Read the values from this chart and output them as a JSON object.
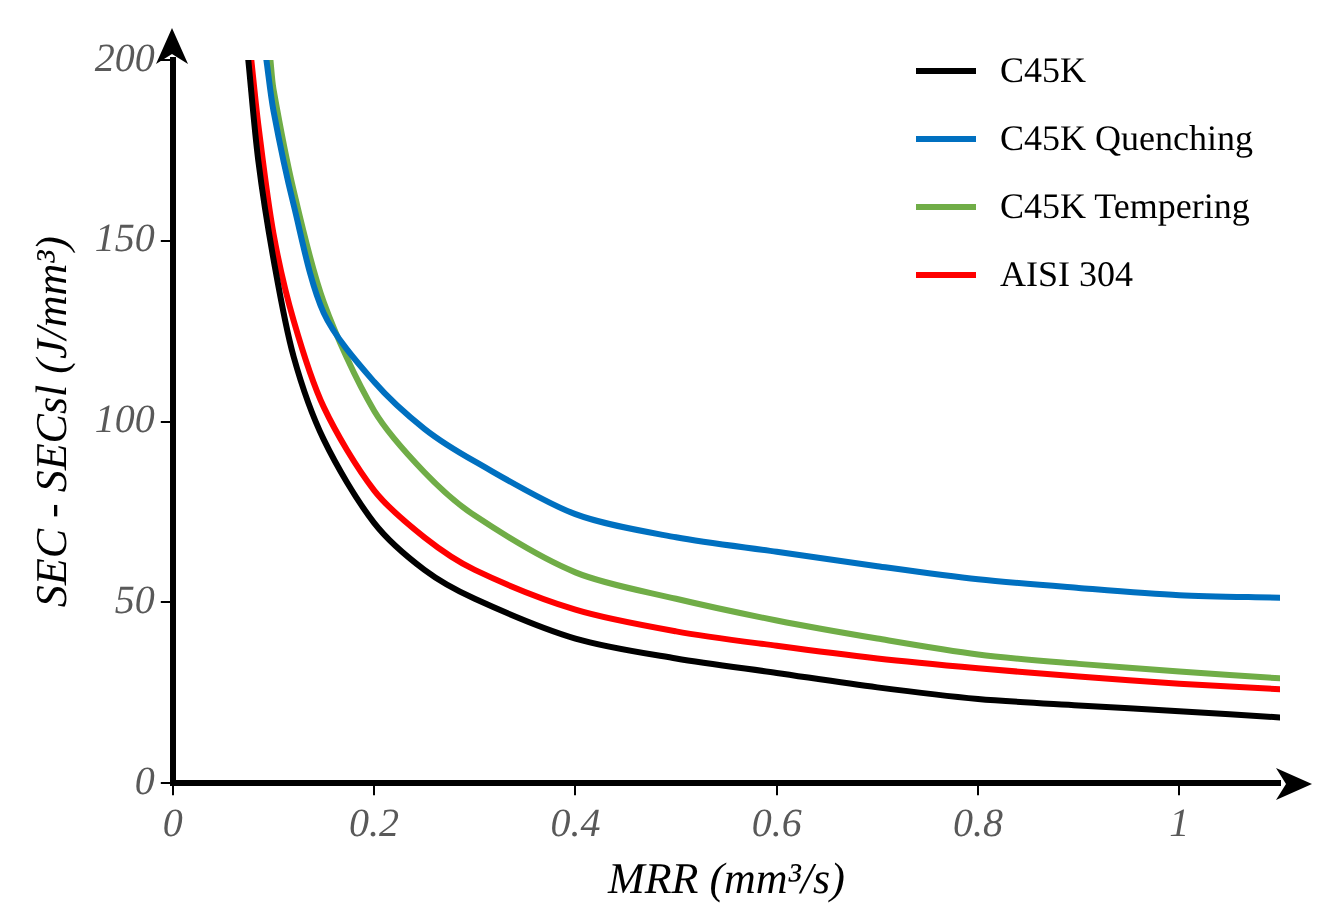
{
  "chart_data": {
    "type": "line",
    "xlabel": "MRR (mm³/s)",
    "ylabel": "SEC - SECsl (J/mm³)",
    "xlim": [
      0,
      1.1
    ],
    "ylim": [
      0,
      200
    ],
    "xticks": [
      0,
      0.2,
      0.4,
      0.6,
      0.8,
      1
    ],
    "yticks": [
      0,
      50,
      100,
      150,
      200
    ],
    "grid": false,
    "legend": "top right",
    "marker": "none",
    "line_style": "solid",
    "series": [
      {
        "name": "C45K",
        "color": "#000000",
        "x": [
          0.075,
          0.085,
          0.1,
          0.12,
          0.15,
          0.2,
          0.25,
          0.3,
          0.4,
          0.5,
          0.6,
          0.7,
          0.8,
          0.9,
          1.0,
          1.1
        ],
        "values": [
          200,
          172,
          145,
          118,
          95,
          72,
          59,
          51,
          40,
          34.5,
          30.5,
          26.5,
          23.3,
          21.5,
          19.9,
          18.2
        ]
      },
      {
        "name": "C45K Quenching",
        "color": "#0070c0",
        "x": [
          0.093,
          0.1,
          0.12,
          0.15,
          0.2,
          0.25,
          0.3,
          0.4,
          0.5,
          0.6,
          0.7,
          0.8,
          0.9,
          1.0,
          1.1
        ],
        "values": [
          200,
          186,
          160,
          130,
          111,
          98,
          89,
          74.4,
          68,
          64,
          60,
          56.4,
          54,
          52,
          51.3
        ]
      },
      {
        "name": "C45K Tempering",
        "color": "#70ad47",
        "x": [
          0.097,
          0.1,
          0.12,
          0.15,
          0.2,
          0.25,
          0.3,
          0.4,
          0.5,
          0.6,
          0.7,
          0.8,
          0.9,
          1.0,
          1.1
        ],
        "values": [
          200,
          192,
          164,
          133,
          103,
          86,
          74,
          58.3,
          51,
          45,
          40,
          35.6,
          33,
          30.9,
          29
        ]
      },
      {
        "name": "AISI 304",
        "color": "#ff0000",
        "x": [
          0.078,
          0.085,
          0.1,
          0.12,
          0.15,
          0.2,
          0.25,
          0.3,
          0.4,
          0.5,
          0.6,
          0.7,
          0.8,
          0.9,
          1.0,
          1.1
        ],
        "values": [
          200,
          182,
          152,
          128,
          104,
          81,
          68,
          59,
          48,
          42,
          38,
          34.5,
          31.8,
          29.5,
          27.5,
          26
        ]
      }
    ]
  }
}
